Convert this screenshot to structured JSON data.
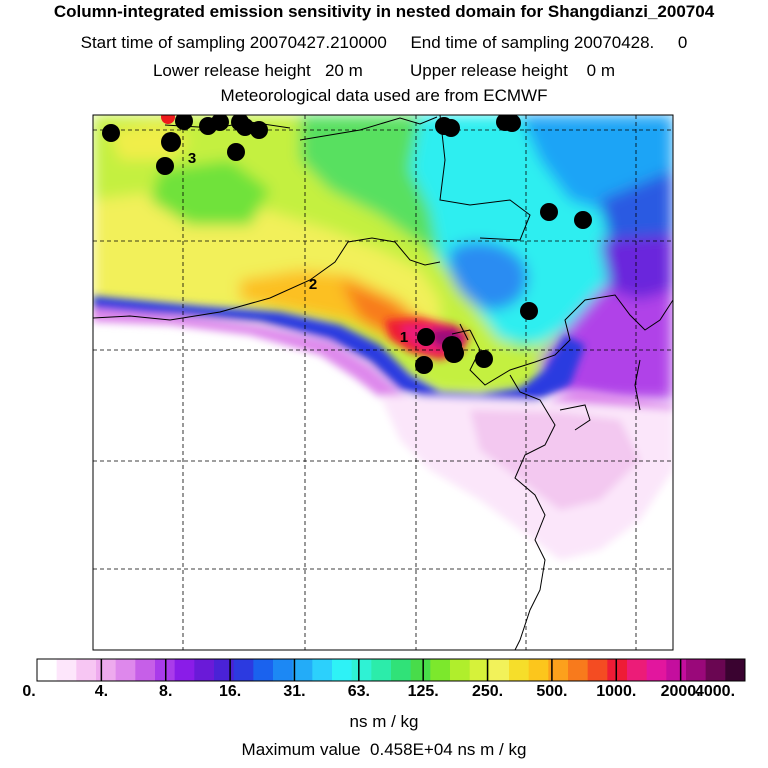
{
  "header": {
    "title": "Column-integrated emission sensitivity in nested domain for Shangdianzi_200704",
    "sampling_line": "Start time of sampling 20070427.210000     End time of sampling 20070428.     0",
    "release_line": "Lower release height   20 m          Upper release height    0 m",
    "met_line": "Meteorological data used are from ECMWF"
  },
  "colorbar": {
    "tick_labels": [
      "0.",
      "4.",
      "8.",
      "16.",
      "31.",
      "63.",
      "125.",
      "250.",
      "500.",
      "1000.",
      "2000.",
      "4000."
    ],
    "unit": "ns m / kg",
    "max_value_text": "Maximum value  0.458E+04 ns m / kg",
    "colors": [
      "#ffffff",
      "#fde6fb",
      "#f7c6f3",
      "#eeaaee",
      "#de88ec",
      "#c65fe8",
      "#a93bea",
      "#8a1ce8",
      "#6a1ad8",
      "#4a22d6",
      "#2c3ae0",
      "#1a62ee",
      "#1c88f4",
      "#23acf8",
      "#2cd0fc",
      "#2ef2f6",
      "#2ff2d4",
      "#2cecaa",
      "#30e278",
      "#48dc4a",
      "#7ce82c",
      "#b0ee2c",
      "#d6f23a",
      "#f2f25a",
      "#f6de2a",
      "#fcc61c",
      "#fca01c",
      "#f87a1c",
      "#f44c22",
      "#ee1c36",
      "#ec1c78",
      "#e2169e",
      "#c40e9e",
      "#9a087a",
      "#6a0652",
      "#3a0330"
    ]
  },
  "chart_data": {
    "type": "heatmap",
    "title": "Column-integrated emission sensitivity in nested domain for Shangdianzi_200704",
    "value_unit": "ns m / kg",
    "color_scale_levels": [
      0,
      4,
      8,
      16,
      31,
      63,
      125,
      250,
      500,
      1000,
      2000,
      4000
    ],
    "max_value": 4580,
    "receptor": "Shangdianzi",
    "labeled_points": [
      "1",
      "2",
      "3"
    ],
    "grid": true
  }
}
